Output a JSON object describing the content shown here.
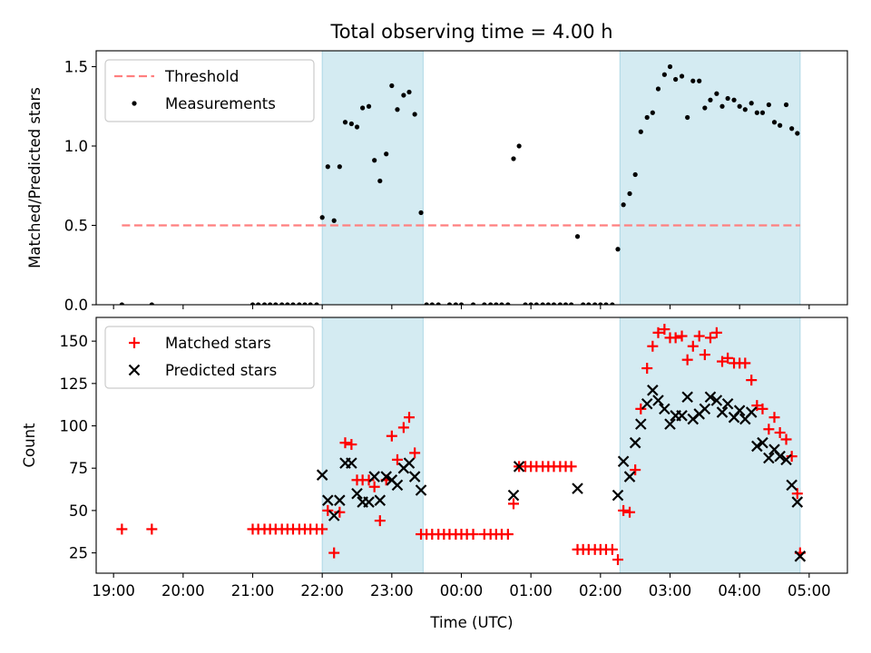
{
  "figure": {
    "title": "Total observing time = 4.00 h"
  },
  "colors": {
    "shade": "#add8e6",
    "threshold": "#ff7f7f",
    "measure": "#000000",
    "matched": "#ff0000",
    "predicted": "#000000"
  },
  "chart_data": [
    {
      "type": "scatter",
      "xlabel": "",
      "ylabel": "Matched/Predicted stars",
      "xlim": [
        -0.25,
        10.55
      ],
      "ylim": [
        0,
        1.6
      ],
      "yticks": [
        0.0,
        0.5,
        1.0,
        1.5
      ],
      "yticklabels": [
        "0.0",
        "0.5",
        "1.0",
        "1.5"
      ],
      "xticks": [
        0,
        1,
        2,
        3,
        4,
        5,
        6,
        7,
        8,
        9,
        10
      ],
      "shaded_intervals": [
        [
          3.0,
          4.45
        ],
        [
          7.28,
          9.87
        ]
      ],
      "legend": {
        "placement": "upper left",
        "entries": [
          {
            "label": "Threshold",
            "marker": "dashed-line"
          },
          {
            "label": "Measurements",
            "marker": "dot"
          }
        ]
      },
      "threshold": {
        "name": "Threshold",
        "y": 0.5,
        "x_start": 0.12,
        "x_end": 9.87
      },
      "series": [
        {
          "name": "Measurements",
          "marker": "dot",
          "points": [
            [
              0.12,
              0
            ],
            [
              0.55,
              0
            ],
            [
              2.0,
              0
            ],
            [
              2.08,
              0
            ],
            [
              2.17,
              0
            ],
            [
              2.25,
              0
            ],
            [
              2.33,
              0
            ],
            [
              2.42,
              0
            ],
            [
              2.5,
              0
            ],
            [
              2.58,
              0
            ],
            [
              2.67,
              0
            ],
            [
              2.75,
              0
            ],
            [
              2.83,
              0
            ],
            [
              2.92,
              0
            ],
            [
              3.0,
              0.55
            ],
            [
              3.08,
              0.87
            ],
            [
              3.17,
              0.53
            ],
            [
              3.25,
              0.87
            ],
            [
              3.33,
              1.15
            ],
            [
              3.42,
              1.14
            ],
            [
              3.5,
              1.12
            ],
            [
              3.58,
              1.24
            ],
            [
              3.67,
              1.25
            ],
            [
              3.75,
              0.91
            ],
            [
              3.83,
              0.78
            ],
            [
              3.92,
              0.95
            ],
            [
              4.0,
              1.38
            ],
            [
              4.08,
              1.23
            ],
            [
              4.17,
              1.32
            ],
            [
              4.25,
              1.34
            ],
            [
              4.33,
              1.2
            ],
            [
              4.42,
              0.58
            ],
            [
              4.5,
              0
            ],
            [
              4.58,
              0
            ],
            [
              4.67,
              0
            ],
            [
              4.83,
              0
            ],
            [
              4.92,
              0
            ],
            [
              5.0,
              0
            ],
            [
              5.17,
              0
            ],
            [
              5.33,
              0
            ],
            [
              5.42,
              0
            ],
            [
              5.5,
              0
            ],
            [
              5.58,
              0
            ],
            [
              5.67,
              0
            ],
            [
              5.75,
              0.92
            ],
            [
              5.83,
              1.0
            ],
            [
              5.92,
              0
            ],
            [
              6.0,
              0
            ],
            [
              6.08,
              0
            ],
            [
              6.17,
              0
            ],
            [
              6.25,
              0
            ],
            [
              6.33,
              0
            ],
            [
              6.42,
              0
            ],
            [
              6.5,
              0
            ],
            [
              6.58,
              0
            ],
            [
              6.67,
              0.43
            ],
            [
              6.75,
              0
            ],
            [
              6.83,
              0
            ],
            [
              6.92,
              0
            ],
            [
              7.0,
              0
            ],
            [
              7.08,
              0
            ],
            [
              7.17,
              0
            ],
            [
              7.25,
              0.35
            ],
            [
              7.33,
              0.63
            ],
            [
              7.42,
              0.7
            ],
            [
              7.5,
              0.82
            ],
            [
              7.58,
              1.09
            ],
            [
              7.67,
              1.18
            ],
            [
              7.75,
              1.21
            ],
            [
              7.83,
              1.36
            ],
            [
              7.92,
              1.45
            ],
            [
              8.0,
              1.5
            ],
            [
              8.08,
              1.42
            ],
            [
              8.17,
              1.44
            ],
            [
              8.25,
              1.18
            ],
            [
              8.33,
              1.41
            ],
            [
              8.42,
              1.41
            ],
            [
              8.5,
              1.24
            ],
            [
              8.58,
              1.29
            ],
            [
              8.67,
              1.33
            ],
            [
              8.75,
              1.25
            ],
            [
              8.83,
              1.3
            ],
            [
              8.92,
              1.29
            ],
            [
              9.0,
              1.25
            ],
            [
              9.08,
              1.23
            ],
            [
              9.17,
              1.27
            ],
            [
              9.25,
              1.21
            ],
            [
              9.33,
              1.21
            ],
            [
              9.42,
              1.26
            ],
            [
              9.5,
              1.15
            ],
            [
              9.58,
              1.13
            ],
            [
              9.67,
              1.26
            ],
            [
              9.75,
              1.11
            ],
            [
              9.83,
              1.08
            ]
          ]
        }
      ]
    },
    {
      "type": "scatter",
      "xlabel": "Time (UTC)",
      "ylabel": "Count",
      "xlim": [
        -0.25,
        10.55
      ],
      "ylim": [
        13,
        164
      ],
      "yticks": [
        25,
        50,
        75,
        100,
        125,
        150
      ],
      "yticklabels": [
        "25",
        "50",
        "75",
        "100",
        "125",
        "150"
      ],
      "xticks": [
        0,
        1,
        2,
        3,
        4,
        5,
        6,
        7,
        8,
        9,
        10
      ],
      "xticklabels": [
        "19:00",
        "20:00",
        "21:00",
        "22:00",
        "23:00",
        "00:00",
        "01:00",
        "02:00",
        "03:00",
        "04:00",
        "05:00"
      ],
      "shaded_intervals": [
        [
          3.0,
          4.45
        ],
        [
          7.28,
          9.87
        ]
      ],
      "legend": {
        "placement": "upper left",
        "entries": [
          {
            "label": "Matched stars",
            "marker": "plus"
          },
          {
            "label": "Predicted stars",
            "marker": "x"
          }
        ]
      },
      "series": [
        {
          "name": "Matched stars",
          "marker": "plus",
          "points": [
            [
              0.12,
              39
            ],
            [
              0.55,
              39
            ],
            [
              2.0,
              39
            ],
            [
              2.08,
              39
            ],
            [
              2.17,
              39
            ],
            [
              2.25,
              39
            ],
            [
              2.33,
              39
            ],
            [
              2.42,
              39
            ],
            [
              2.5,
              39
            ],
            [
              2.58,
              39
            ],
            [
              2.67,
              39
            ],
            [
              2.75,
              39
            ],
            [
              2.83,
              39
            ],
            [
              2.92,
              39
            ],
            [
              3.0,
              39
            ],
            [
              3.08,
              50
            ],
            [
              3.17,
              25
            ],
            [
              3.25,
              49
            ],
            [
              3.33,
              90
            ],
            [
              3.42,
              89
            ],
            [
              3.5,
              68
            ],
            [
              3.58,
              68
            ],
            [
              3.67,
              68
            ],
            [
              3.75,
              64
            ],
            [
              3.83,
              44
            ],
            [
              3.92,
              68
            ],
            [
              4.0,
              94
            ],
            [
              4.08,
              80
            ],
            [
              4.17,
              99
            ],
            [
              4.25,
              105
            ],
            [
              4.33,
              84
            ],
            [
              4.42,
              36
            ],
            [
              4.5,
              36
            ],
            [
              4.58,
              36
            ],
            [
              4.67,
              36
            ],
            [
              4.75,
              36
            ],
            [
              4.83,
              36
            ],
            [
              4.92,
              36
            ],
            [
              5.0,
              36
            ],
            [
              5.08,
              36
            ],
            [
              5.17,
              36
            ],
            [
              5.33,
              36
            ],
            [
              5.42,
              36
            ],
            [
              5.5,
              36
            ],
            [
              5.58,
              36
            ],
            [
              5.67,
              36
            ],
            [
              5.75,
              54
            ],
            [
              5.83,
              76
            ],
            [
              5.92,
              76
            ],
            [
              6.0,
              76
            ],
            [
              6.08,
              76
            ],
            [
              6.17,
              76
            ],
            [
              6.25,
              76
            ],
            [
              6.33,
              76
            ],
            [
              6.42,
              76
            ],
            [
              6.5,
              76
            ],
            [
              6.58,
              76
            ],
            [
              6.67,
              27
            ],
            [
              6.75,
              27
            ],
            [
              6.83,
              27
            ],
            [
              6.92,
              27
            ],
            [
              7.0,
              27
            ],
            [
              7.08,
              27
            ],
            [
              7.17,
              27
            ],
            [
              7.25,
              21
            ],
            [
              7.33,
              50
            ],
            [
              7.42,
              49
            ],
            [
              7.5,
              74
            ],
            [
              7.58,
              110
            ],
            [
              7.67,
              134
            ],
            [
              7.75,
              147
            ],
            [
              7.83,
              155
            ],
            [
              7.92,
              157
            ],
            [
              8.0,
              152
            ],
            [
              8.08,
              152
            ],
            [
              8.17,
              153
            ],
            [
              8.25,
              139
            ],
            [
              8.33,
              147
            ],
            [
              8.42,
              153
            ],
            [
              8.5,
              142
            ],
            [
              8.58,
              152
            ],
            [
              8.67,
              155
            ],
            [
              8.75,
              138
            ],
            [
              8.83,
              140
            ],
            [
              8.92,
              137
            ],
            [
              9.0,
              137
            ],
            [
              9.08,
              137
            ],
            [
              9.17,
              127
            ],
            [
              9.25,
              112
            ],
            [
              9.33,
              110
            ],
            [
              9.42,
              98
            ],
            [
              9.5,
              105
            ],
            [
              9.58,
              96
            ],
            [
              9.67,
              92
            ],
            [
              9.75,
              82
            ],
            [
              9.83,
              60
            ],
            [
              9.87,
              25
            ]
          ]
        },
        {
          "name": "Predicted stars",
          "marker": "x",
          "points": [
            [
              3.0,
              71
            ],
            [
              3.08,
              56
            ],
            [
              3.17,
              47
            ],
            [
              3.25,
              56
            ],
            [
              3.33,
              78
            ],
            [
              3.42,
              78
            ],
            [
              3.5,
              60
            ],
            [
              3.58,
              55
            ],
            [
              3.67,
              55
            ],
            [
              3.75,
              70
            ],
            [
              3.83,
              56
            ],
            [
              3.92,
              70
            ],
            [
              4.0,
              68
            ],
            [
              4.08,
              65
            ],
            [
              4.17,
              75
            ],
            [
              4.25,
              78
            ],
            [
              4.33,
              70
            ],
            [
              4.42,
              62
            ],
            [
              5.75,
              59
            ],
            [
              5.83,
              76
            ],
            [
              6.67,
              63
            ],
            [
              7.25,
              59
            ],
            [
              7.33,
              79
            ],
            [
              7.42,
              70
            ],
            [
              7.5,
              90
            ],
            [
              7.58,
              101
            ],
            [
              7.67,
              113
            ],
            [
              7.75,
              121
            ],
            [
              7.83,
              115
            ],
            [
              7.92,
              110
            ],
            [
              8.0,
              101
            ],
            [
              8.08,
              106
            ],
            [
              8.17,
              106
            ],
            [
              8.25,
              117
            ],
            [
              8.33,
              104
            ],
            [
              8.42,
              107
            ],
            [
              8.5,
              110
            ],
            [
              8.58,
              117
            ],
            [
              8.67,
              115
            ],
            [
              8.75,
              108
            ],
            [
              8.83,
              113
            ],
            [
              8.92,
              105
            ],
            [
              9.0,
              109
            ],
            [
              9.08,
              104
            ],
            [
              9.17,
              108
            ],
            [
              9.25,
              88
            ],
            [
              9.33,
              90
            ],
            [
              9.42,
              81
            ],
            [
              9.5,
              86
            ],
            [
              9.58,
              82
            ],
            [
              9.67,
              80
            ],
            [
              9.75,
              65
            ],
            [
              9.83,
              55
            ],
            [
              9.87,
              23
            ]
          ]
        }
      ]
    }
  ]
}
